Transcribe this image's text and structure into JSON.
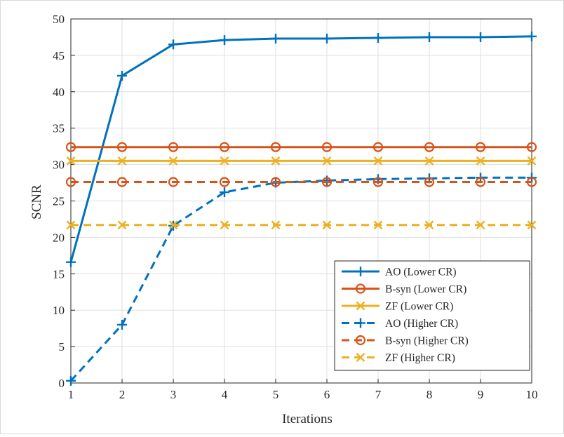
{
  "chart_data": {
    "type": "line",
    "title": "",
    "xlabel": "Iterations",
    "ylabel": "SCNR",
    "x": [
      1,
      2,
      3,
      4,
      5,
      6,
      7,
      8,
      9,
      10
    ],
    "xlim": [
      1,
      10
    ],
    "ylim": [
      0,
      50
    ],
    "xticks": [
      "1",
      "2",
      "3",
      "4",
      "5",
      "6",
      "7",
      "8",
      "9",
      "10"
    ],
    "yticks": [
      "0",
      "5",
      "10",
      "15",
      "20",
      "25",
      "30",
      "35",
      "40",
      "45",
      "50"
    ],
    "grid": true,
    "legend_position": "bottom-right",
    "series": [
      {
        "name": "AO (Lower CR)",
        "color": "#0072BD",
        "dash": "solid",
        "marker": "plus",
        "values": [
          16.6,
          42.2,
          46.5,
          47.1,
          47.3,
          47.3,
          47.4,
          47.5,
          47.5,
          47.6
        ]
      },
      {
        "name": "B-syn (Lower CR)",
        "color": "#D95319",
        "dash": "solid",
        "marker": "circle",
        "values": [
          32.4,
          32.4,
          32.4,
          32.4,
          32.4,
          32.4,
          32.4,
          32.4,
          32.4,
          32.4
        ]
      },
      {
        "name": "ZF (Lower CR)",
        "color": "#EDB120",
        "dash": "solid",
        "marker": "x",
        "values": [
          30.5,
          30.5,
          30.5,
          30.5,
          30.5,
          30.5,
          30.5,
          30.5,
          30.5,
          30.5
        ]
      },
      {
        "name": "AO (Higher CR)",
        "color": "#0072BD",
        "dash": "dashed",
        "marker": "plus",
        "values": [
          0.3,
          8.0,
          21.6,
          26.2,
          27.5,
          27.8,
          28.0,
          28.1,
          28.2,
          28.2
        ]
      },
      {
        "name": "B-syn (Higher CR)",
        "color": "#D95319",
        "dash": "dashed",
        "marker": "circle",
        "values": [
          27.6,
          27.6,
          27.6,
          27.6,
          27.6,
          27.6,
          27.6,
          27.6,
          27.6,
          27.6
        ]
      },
      {
        "name": "ZF (Higher CR)",
        "color": "#EDB120",
        "dash": "dashed",
        "marker": "x",
        "values": [
          21.7,
          21.7,
          21.7,
          21.7,
          21.7,
          21.7,
          21.7,
          21.7,
          21.7,
          21.7
        ]
      }
    ]
  }
}
